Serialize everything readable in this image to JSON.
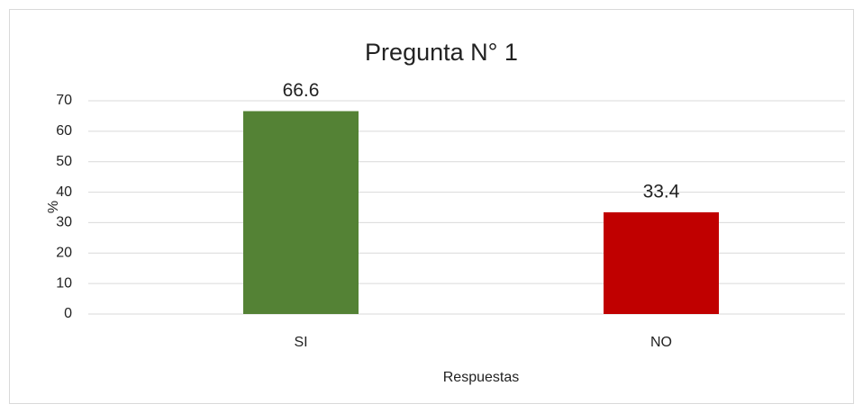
{
  "chart_data": {
    "type": "bar",
    "title": "Pregunta N° 1",
    "categories": [
      "SI",
      "NO"
    ],
    "values": [
      66.6,
      33.4
    ],
    "colors": [
      "#548235",
      "#c00000"
    ],
    "ylim": [
      0,
      70
    ],
    "yticks": [
      0,
      10,
      20,
      30,
      40,
      50,
      60,
      70
    ],
    "grid": true,
    "ylabel": "%",
    "xlabel": "Respuestas"
  }
}
